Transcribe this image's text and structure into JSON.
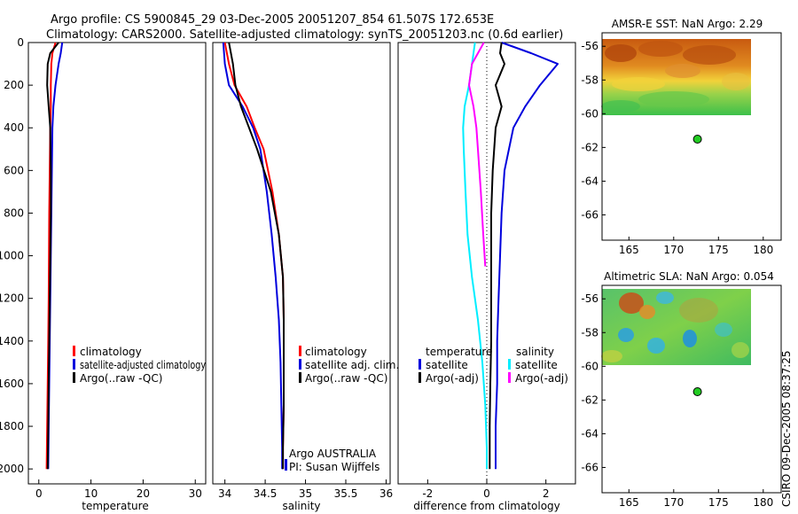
{
  "title_line1": "Argo profile: CS 5900845_29 03-Dec-2005 20051207_854 61.507S 172.653E",
  "title_line2": "Climatology: CARS2000. Satellite-adjusted climatology: synTS_20051203.nc (0.6d earlier)",
  "side_stamp": "CSIRO 09-Dec-2005 08:37:25",
  "colors": {
    "climatology": "#ff0000",
    "satellite": "#0000dd",
    "argo": "#000000",
    "sat_diff": "#00eeff",
    "argo_diff": "#ff00ff",
    "float_marker": "#22cc22"
  },
  "annotations": {
    "argo_country": "Argo AUSTRALIA",
    "pi": "PI: Susan Wijffels"
  },
  "chart_data": [
    {
      "type": "line",
      "xlabel": "temperature",
      "xlim": [
        -2,
        32
      ],
      "ylim": [
        2070,
        0
      ],
      "xticks": [
        0,
        10,
        20,
        30
      ],
      "yticks": [
        0,
        200,
        400,
        600,
        800,
        1000,
        1200,
        1400,
        1600,
        1800,
        2000
      ],
      "legend_position": "lower-right",
      "series": [
        {
          "name": "climatology",
          "color": "#ff0000",
          "x": [
            3.2,
            2.6,
            2.4,
            2.3,
            2.3,
            2.2,
            2.1,
            2.0,
            1.95,
            1.9,
            1.8,
            1.7,
            1.6,
            1.5
          ],
          "y": [
            0,
            50,
            100,
            200,
            300,
            400,
            600,
            800,
            1000,
            1200,
            1400,
            1600,
            1800,
            2000
          ]
        },
        {
          "name": "satellite-adjusted climatology",
          "color": "#0000dd",
          "x": [
            4.5,
            4.2,
            3.8,
            3.2,
            2.8,
            2.6,
            2.5,
            2.4,
            2.3,
            2.2,
            2.1,
            2.0,
            1.9,
            1.8
          ],
          "y": [
            0,
            50,
            100,
            200,
            300,
            400,
            600,
            800,
            1000,
            1200,
            1400,
            1600,
            1800,
            2000
          ]
        },
        {
          "name": "Argo(..raw -QC)",
          "color": "#000000",
          "x": [
            3.8,
            2.2,
            1.7,
            1.6,
            1.9,
            2.2,
            2.3,
            2.3,
            2.2,
            2.1,
            2.0,
            1.9,
            1.8,
            1.7
          ],
          "y": [
            0,
            50,
            100,
            200,
            300,
            400,
            600,
            800,
            1000,
            1200,
            1400,
            1600,
            1800,
            2000
          ]
        }
      ]
    },
    {
      "type": "line",
      "xlabel": "salinity",
      "xlim": [
        33.85,
        36.05
      ],
      "ylim": [
        2070,
        0
      ],
      "xticks": [
        34,
        34.5,
        35,
        35.5,
        36
      ],
      "yticks": [
        0,
        200,
        400,
        600,
        800,
        1000,
        1200,
        1400,
        1600,
        1800,
        2000
      ],
      "legend_position": "lower-right",
      "series": [
        {
          "name": "climatology",
          "color": "#ff0000",
          "x": [
            34.0,
            34.05,
            34.12,
            34.27,
            34.37,
            34.48,
            34.59,
            34.67,
            34.72,
            34.73,
            34.73,
            34.73,
            34.72,
            34.72
          ],
          "y": [
            0,
            100,
            200,
            300,
            400,
            500,
            700,
            900,
            1100,
            1300,
            1500,
            1700,
            1900,
            2000
          ]
        },
        {
          "name": "satellite adj. clim.",
          "color": "#0000dd",
          "x": [
            33.98,
            34.0,
            34.05,
            34.22,
            34.35,
            34.44,
            34.52,
            34.58,
            34.63,
            34.67,
            34.69,
            34.7,
            34.71,
            34.71
          ],
          "y": [
            0,
            100,
            200,
            300,
            400,
            500,
            700,
            900,
            1100,
            1300,
            1500,
            1700,
            1900,
            2000
          ]
        },
        {
          "name": "Argo(..raw -QC)",
          "color": "#000000",
          "x": [
            34.05,
            34.1,
            34.13,
            34.2,
            34.3,
            34.4,
            34.57,
            34.67,
            34.72,
            34.73,
            34.73,
            34.73,
            34.72,
            34.72
          ],
          "y": [
            0,
            100,
            200,
            300,
            400,
            500,
            700,
            900,
            1100,
            1300,
            1500,
            1700,
            1900,
            2000
          ]
        }
      ]
    },
    {
      "type": "line",
      "xlabel": "difference from climatology",
      "xlim": [
        -3,
        3
      ],
      "ylim": [
        2070,
        0
      ],
      "xticks": [
        -2,
        0,
        2
      ],
      "yticks": [
        0,
        200,
        400,
        600,
        800,
        1000,
        1200,
        1400,
        1600,
        1800,
        2000
      ],
      "legend_groups": [
        "temperature",
        "salinity"
      ],
      "series": [
        {
          "name": "satellite",
          "group": "temperature",
          "color": "#0000dd",
          "x": [
            0.5,
            1.5,
            2.4,
            1.8,
            1.3,
            0.9,
            0.6,
            0.5,
            0.45,
            0.4,
            0.35,
            0.35,
            0.3,
            0.3
          ],
          "y": [
            0,
            50,
            100,
            200,
            300,
            400,
            600,
            800,
            1000,
            1200,
            1400,
            1600,
            1800,
            2000
          ]
        },
        {
          "name": "Argo(-adj)",
          "group": "temperature",
          "color": "#000000",
          "x": [
            0.5,
            0.45,
            0.6,
            0.3,
            0.5,
            0.3,
            0.2,
            0.15,
            0.15,
            0.15,
            0.15,
            0.12,
            0.1,
            0.1
          ],
          "y": [
            0,
            50,
            100,
            200,
            300,
            400,
            600,
            800,
            1000,
            1200,
            1400,
            1600,
            1800,
            2000
          ]
        },
        {
          "name": "satellite",
          "group": "salinity",
          "color": "#00eeff",
          "x": [
            -0.4,
            -0.5,
            -0.6,
            -0.75,
            -0.8,
            -0.78,
            -0.72,
            -0.65,
            -0.5,
            -0.3,
            -0.15,
            -0.05,
            0.0,
            0.0
          ],
          "y": [
            0,
            100,
            200,
            300,
            400,
            500,
            700,
            900,
            1100,
            1300,
            1500,
            1700,
            1900,
            2000
          ]
        },
        {
          "name": "Argo(-adj)",
          "group": "salinity",
          "color": "#ff00ff",
          "x": [
            -0.1,
            -0.5,
            -0.6,
            -0.45,
            -0.35,
            -0.3,
            -0.2,
            -0.12,
            -0.05
          ],
          "y": [
            0,
            100,
            200,
            300,
            400,
            500,
            700,
            900,
            1050
          ]
        }
      ]
    },
    {
      "type": "heatmap",
      "title": "AMSR-E SST: NaN Argo: 2.29",
      "xlim": [
        162,
        182
      ],
      "ylim": [
        -67.5,
        -55.2
      ],
      "xticks": [
        165,
        170,
        175,
        180
      ],
      "yticks": [
        -56,
        -58,
        -60,
        -62,
        -64,
        -66
      ],
      "data_extent": {
        "lon": [
          162,
          180
        ],
        "lat": [
          -60,
          -55.5
        ]
      },
      "float_position": {
        "lon": 172.653,
        "lat": -61.507
      }
    },
    {
      "type": "heatmap",
      "title": "Altimetric SLA: NaN Argo: 0.054",
      "xlim": [
        162,
        182
      ],
      "ylim": [
        -67.5,
        -55.2
      ],
      "xticks": [
        165,
        170,
        175,
        180
      ],
      "yticks": [
        -56,
        -58,
        -60,
        -62,
        -64,
        -66
      ],
      "data_extent": {
        "lon": [
          162,
          180
        ],
        "lat": [
          -60,
          -55.5
        ]
      },
      "float_position": {
        "lon": 172.653,
        "lat": -61.507
      }
    }
  ]
}
